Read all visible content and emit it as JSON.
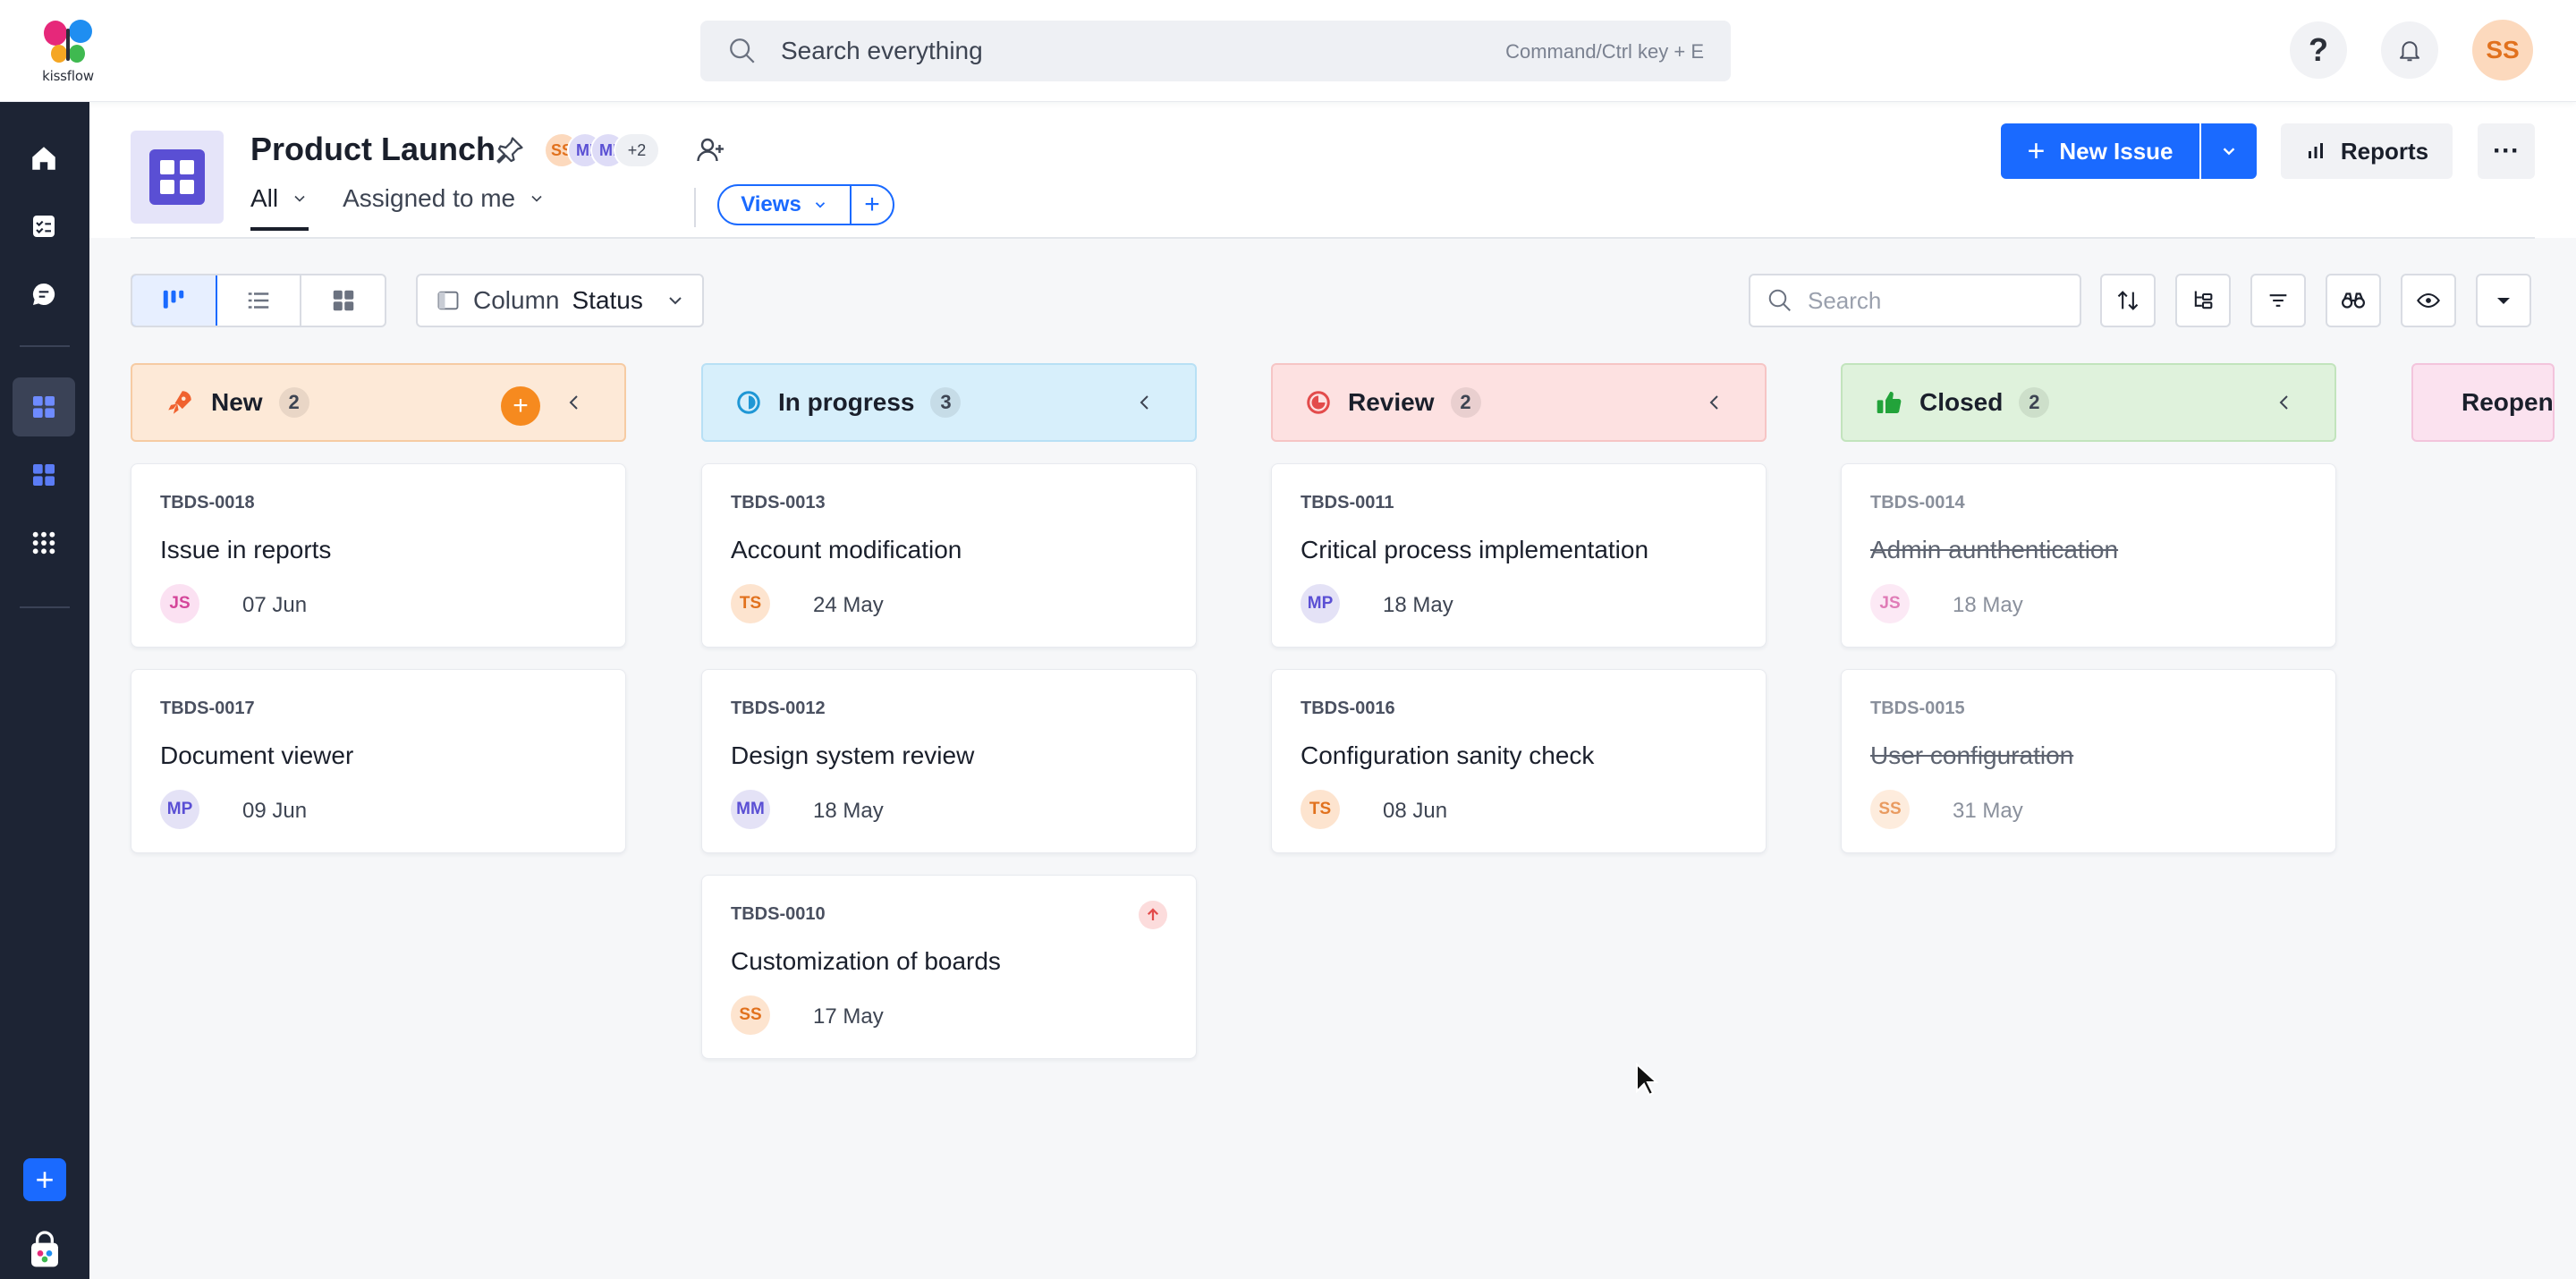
{
  "app": {
    "logo_text": "kissflow",
    "search_placeholder": "Search everything",
    "search_hint": "Command/Ctrl key + E",
    "help_label": "?",
    "user_initials": "SS"
  },
  "project": {
    "title": "Product Launch",
    "members": [
      "SS",
      "MI",
      "MI"
    ],
    "members_more": "+2",
    "tabs": [
      {
        "label": "All"
      },
      {
        "label": "Assigned to me"
      }
    ],
    "views_label": "Views",
    "views_add": "+",
    "new_issue_label": "New Issue",
    "reports_label": "Reports",
    "more_label": "···"
  },
  "toolbar": {
    "column_label": "Column",
    "column_value": "Status",
    "search_placeholder": "Search"
  },
  "columns": [
    {
      "name": "New",
      "count": "2",
      "color": "#f6cba3"
    },
    {
      "name": "In progress",
      "count": "3",
      "color": "#b8e0f5"
    },
    {
      "name": "Review",
      "count": "2",
      "color": "#f6c5c5"
    },
    {
      "name": "Closed",
      "count": "2",
      "color": "#c2e4bd"
    },
    {
      "name": "Reopened",
      "color": "#f3c4dc"
    }
  ],
  "cards": {
    "new": [
      {
        "id": "TBDS-0018",
        "title": "Issue in reports",
        "assignee": "JS",
        "date": "07 Jun"
      },
      {
        "id": "TBDS-0017",
        "title": "Document viewer",
        "assignee": "MP",
        "date": "09 Jun"
      }
    ],
    "in_progress": [
      {
        "id": "TBDS-0013",
        "title": "Account modification",
        "assignee": "TS",
        "date": "24 May"
      },
      {
        "id": "TBDS-0012",
        "title": "Design system review",
        "assignee": "MM",
        "date": "18 May"
      },
      {
        "id": "TBDS-0010",
        "title": "Customization of boards",
        "assignee": "SS",
        "date": "17 May"
      }
    ],
    "review": [
      {
        "id": "TBDS-0011",
        "title": "Critical process implementation",
        "assignee": "MP",
        "date": "18 May"
      },
      {
        "id": "TBDS-0016",
        "title": "Configuration sanity check",
        "assignee": "TS",
        "date": "08 Jun"
      }
    ],
    "closed": [
      {
        "id": "TBDS-0014",
        "title": "Admin aunthentication",
        "assignee": "JS",
        "date": "18 May"
      },
      {
        "id": "TBDS-0015",
        "title": "User configuration",
        "assignee": "SS",
        "date": "31 May"
      }
    ]
  }
}
